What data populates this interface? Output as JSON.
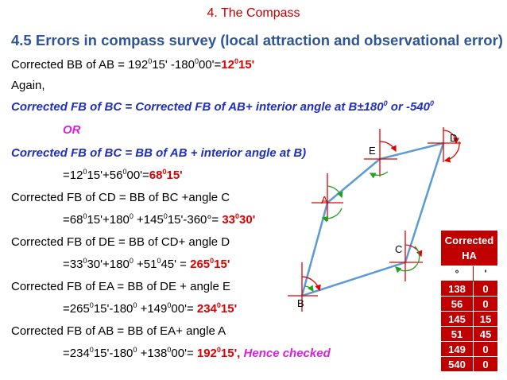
{
  "header": "4. The Compass",
  "title": "4.5 Errors in compass survey (local attraction and observational error)",
  "lines": {
    "l1": {
      "a": "Corrected BB of AB = 192",
      "b": "15' -180",
      "c": "00'=",
      "r1": "12",
      "r2": "15'"
    },
    "l2": "Again,",
    "l3": {
      "a": "Corrected FB of BC = Corrected FB of AB+ interior angle at B±180",
      "b": " or -540"
    },
    "l4": "OR",
    "l5": "Corrected FB of BC = BB of AB + interior angle at B)",
    "l6": {
      "a": "=12",
      "b": "15'+56",
      "c": "00'=",
      "r1": "68",
      "r2": "15'"
    },
    "l7": "Corrected FB of CD = BB of BC +angle C",
    "l8": {
      "a": "=68",
      "b": "15'+180",
      "c": " +145",
      "d": "15'-360°= ",
      "r1": "33",
      "r2": "30'"
    },
    "l9": "Corrected FB of DE = BB of CD+ angle D",
    "l10": {
      "a": "=33",
      "b": "30'+180",
      "c": " +51",
      "d": "45' = ",
      "r1": "265",
      "r2": "15'"
    },
    "l11": "Corrected FB of EA = BB of DE + angle E",
    "l12": {
      "a": "=265",
      "b": "15'-180",
      "c": " +149",
      "d": "00'= ",
      "r1": "234",
      "r2": "15'"
    },
    "l13": "Corrected FB of AB = BB of EA+ angle A",
    "l14": {
      "a": "=234",
      "b": "15'-180",
      "c": " +138",
      "d": "00'= ",
      "r1": "192",
      "r2": "15', ",
      "check": "Hence checked"
    }
  },
  "deg": "0",
  "points": {
    "A": "A",
    "B": "B",
    "C": "C",
    "D": "D",
    "E": "E"
  },
  "table": {
    "header": [
      "Corrected",
      "HA"
    ],
    "units": [
      "°",
      "'"
    ],
    "rows": [
      {
        "deg": "138",
        "min": "0"
      },
      {
        "deg": "56",
        "min": "0"
      },
      {
        "deg": "145",
        "min": "15"
      },
      {
        "deg": "51",
        "min": "45"
      },
      {
        "deg": "149",
        "min": "0"
      },
      {
        "deg": "540",
        "min": "0"
      }
    ]
  },
  "colors": {
    "title": "#2f5597",
    "red": "#c00000",
    "blue_italic": "#1f2fbf",
    "magenta": "#d61fe0",
    "traverse": "#5b9bd5"
  }
}
